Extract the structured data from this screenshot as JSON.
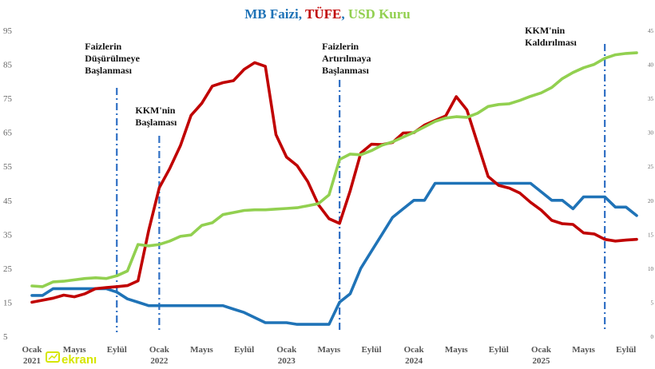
{
  "title": {
    "parts": [
      {
        "text": "MB Faizi",
        "color": "#1f73b7"
      },
      {
        "text": ", ",
        "color": "#1f73b7"
      },
      {
        "text": "TÜFE",
        "color": "#c00000"
      },
      {
        "text": ", ",
        "color": "#1f73b7"
      },
      {
        "text": "USD Kuru",
        "color": "#92d050"
      }
    ]
  },
  "chart_data": {
    "type": "line",
    "x_months": [
      "2021-01",
      "2021-02",
      "2021-03",
      "2021-04",
      "2021-05",
      "2021-06",
      "2021-07",
      "2021-08",
      "2021-09",
      "2021-10",
      "2021-11",
      "2021-12",
      "2022-01",
      "2022-02",
      "2022-03",
      "2022-04",
      "2022-05",
      "2022-06",
      "2022-07",
      "2022-08",
      "2022-09",
      "2022-10",
      "2022-11",
      "2022-12",
      "2023-01",
      "2023-02",
      "2023-03",
      "2023-04",
      "2023-05",
      "2023-06",
      "2023-07",
      "2023-08",
      "2023-09",
      "2023-10",
      "2023-11",
      "2023-12",
      "2024-01",
      "2024-02",
      "2024-03",
      "2024-04",
      "2024-05",
      "2024-06",
      "2024-07",
      "2024-08",
      "2024-09",
      "2024-10",
      "2024-11",
      "2024-12",
      "2025-01",
      "2025-02",
      "2025-03",
      "2025-04",
      "2025-05",
      "2025-06",
      "2025-07",
      "2025-08",
      "2025-09",
      "2025-10"
    ],
    "x_tick_labels": [
      {
        "line1": "Ocak",
        "line2": "2021",
        "month": "2021-01"
      },
      {
        "line1": "Mayıs",
        "line2": "",
        "month": "2021-05"
      },
      {
        "line1": "Eylül",
        "line2": "",
        "month": "2021-09"
      },
      {
        "line1": "Ocak",
        "line2": "2022",
        "month": "2022-01"
      },
      {
        "line1": "Mayıs",
        "line2": "",
        "month": "2022-05"
      },
      {
        "line1": "Eylül",
        "line2": "",
        "month": "2022-09"
      },
      {
        "line1": "Ocak",
        "line2": "2023",
        "month": "2023-01"
      },
      {
        "line1": "Mayıs",
        "line2": "",
        "month": "2023-05"
      },
      {
        "line1": "Eylül",
        "line2": "",
        "month": "2023-09"
      },
      {
        "line1": "Ocak",
        "line2": "2024",
        "month": "2024-01"
      },
      {
        "line1": "Mayıs",
        "line2": "",
        "month": "2024-05"
      },
      {
        "line1": "Eylül",
        "line2": "",
        "month": "2024-09"
      },
      {
        "line1": "Ocak",
        "line2": "2025",
        "month": "2025-01"
      },
      {
        "line1": "Mayıs",
        "line2": "",
        "month": "2025-05"
      },
      {
        "line1": "Eylül",
        "line2": "",
        "month": "2025-09"
      }
    ],
    "y_left": {
      "range": [
        5,
        95
      ],
      "ticks": [
        5,
        15,
        25,
        35,
        45,
        55,
        65,
        75,
        85,
        95
      ]
    },
    "y_right": {
      "range": [
        0,
        45
      ],
      "ticks": [
        0,
        5,
        10,
        15,
        20,
        25,
        30,
        35,
        40,
        45
      ]
    },
    "grid": false,
    "series": [
      {
        "name": "MB Faizi",
        "color": "#1f73b7",
        "axis": "left",
        "values": [
          17,
          17,
          19,
          19,
          19,
          19,
          19,
          19,
          18,
          16,
          15,
          14,
          14,
          14,
          14,
          14,
          14,
          14,
          14,
          13,
          12,
          10.5,
          9,
          9,
          9,
          8.5,
          8.5,
          8.5,
          8.5,
          15,
          17.5,
          25,
          30,
          35,
          40,
          42.5,
          45,
          45,
          50,
          50,
          50,
          50,
          50,
          50,
          50,
          50,
          50,
          50,
          47.5,
          45,
          45,
          42.5,
          46,
          46,
          46,
          43,
          43,
          40.5
        ]
      },
      {
        "name": "TÜFE",
        "color": "#c00000",
        "axis": "left",
        "values": [
          15,
          15.6,
          16.2,
          17.1,
          16.6,
          17.5,
          19,
          19.3,
          19.6,
          19.9,
          21.3,
          36.1,
          48.7,
          54.4,
          61.1,
          70,
          73.5,
          78.6,
          79.6,
          80.2,
          83.5,
          85.5,
          84.4,
          64.3,
          57.7,
          55.2,
          50.5,
          43.7,
          39.6,
          38.2,
          47.8,
          58.9,
          61.5,
          61.4,
          62,
          64.8,
          64.9,
          67.1,
          68.5,
          69.8,
          75.5,
          71.6,
          61.8,
          52,
          49.4,
          48.6,
          47.1,
          44.4,
          42.1,
          39.1,
          38.1,
          37.9,
          35.4,
          35.1,
          33.5,
          33,
          33.3,
          33.5
        ]
      },
      {
        "name": "USD Kuru",
        "color": "#92d050",
        "axis": "right",
        "values": [
          7.4,
          7.3,
          8.0,
          8.1,
          8.3,
          8.5,
          8.6,
          8.5,
          8.9,
          9.6,
          13.5,
          13.3,
          13.5,
          14.0,
          14.7,
          14.9,
          16.3,
          16.7,
          17.9,
          18.2,
          18.5,
          18.6,
          18.6,
          18.7,
          18.8,
          18.9,
          19.2,
          19.5,
          20.8,
          26.0,
          26.8,
          26.7,
          27.3,
          28.1,
          28.6,
          29.3,
          30.0,
          30.8,
          31.6,
          32.1,
          32.3,
          32.2,
          32.8,
          33.8,
          34.1,
          34.2,
          34.7,
          35.3,
          35.8,
          36.6,
          37.9,
          38.8,
          39.5,
          40.0,
          40.9,
          41.4,
          41.6,
          41.7
        ]
      }
    ],
    "annotations": [
      {
        "lines": [
          "Faizlerin",
          "Düşürülmeye",
          "Başlanması"
        ],
        "month": "2021-09"
      },
      {
        "lines": [
          "KKM'nin",
          "Başlaması"
        ],
        "month": "2022-01"
      },
      {
        "lines": [
          "Faizlerin",
          "Artırılmaya",
          "Başlanması"
        ],
        "month": "2023-06"
      },
      {
        "lines": [
          "KKM'nin",
          "Kaldırılması"
        ],
        "month": "2025-07"
      }
    ]
  },
  "watermark": {
    "text": "ekranı",
    "color": "#d6e600"
  },
  "icons": {
    "watermark_icon": "tv-screen-icon"
  }
}
